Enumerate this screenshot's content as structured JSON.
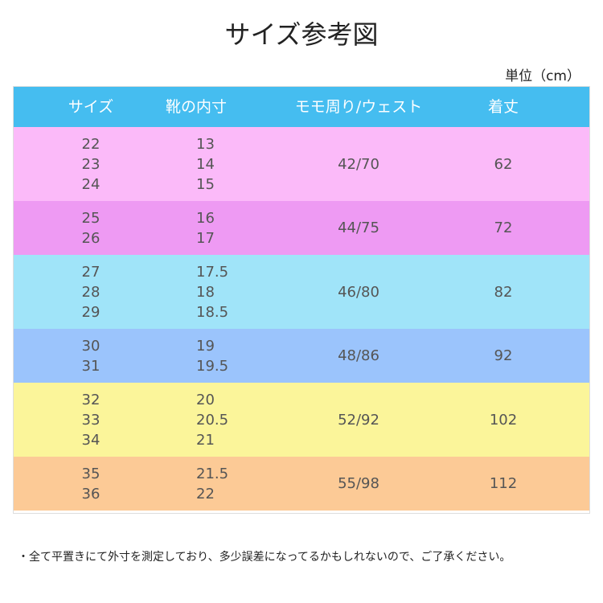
{
  "header": {
    "title": "サイズ参考図",
    "unit": "単位（cm）"
  },
  "table": {
    "columns": [
      "サイズ",
      "靴の内寸",
      "モモ周り/ウェスト",
      "着丈"
    ],
    "header_color": "#45bdf0",
    "groups": [
      {
        "color": "#fbbaf9",
        "sizes": [
          "22",
          "23",
          "24"
        ],
        "shoe": [
          "13",
          "14",
          "15"
        ],
        "waist": "42/70",
        "length": "62"
      },
      {
        "color": "#ee9af3",
        "sizes": [
          "25",
          "26"
        ],
        "shoe": [
          "16",
          "17"
        ],
        "waist": "44/75",
        "length": "72"
      },
      {
        "color": "#a0e4f9",
        "sizes": [
          "27",
          "28",
          "29"
        ],
        "shoe": [
          "17.5",
          "18",
          "18.5"
        ],
        "waist": "46/80",
        "length": "82"
      },
      {
        "color": "#9bc4fc",
        "sizes": [
          "30",
          "31"
        ],
        "shoe": [
          "19",
          "19.5"
        ],
        "waist": "48/86",
        "length": "92"
      },
      {
        "color": "#fbf59a",
        "sizes": [
          "32",
          "33",
          "34"
        ],
        "shoe": [
          "20",
          "20.5",
          "21"
        ],
        "waist": "52/92",
        "length": "102"
      },
      {
        "color": "#fcca96",
        "sizes": [
          "35",
          "36"
        ],
        "shoe": [
          "21.5",
          "22"
        ],
        "waist": "55/98",
        "length": "112"
      }
    ]
  },
  "note": "・全て平置きにて外寸を測定しており、多少誤差になってるかもしれないので、ご了承ください。"
}
